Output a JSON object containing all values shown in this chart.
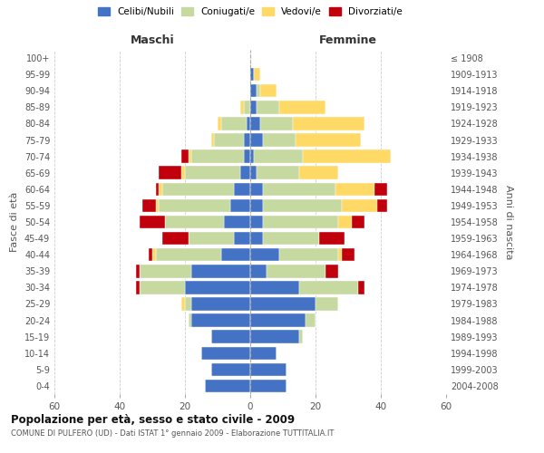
{
  "age_groups": [
    "0-4",
    "5-9",
    "10-14",
    "15-19",
    "20-24",
    "25-29",
    "30-34",
    "35-39",
    "40-44",
    "45-49",
    "50-54",
    "55-59",
    "60-64",
    "65-69",
    "70-74",
    "75-79",
    "80-84",
    "85-89",
    "90-94",
    "95-99",
    "100+"
  ],
  "birth_years": [
    "2004-2008",
    "1999-2003",
    "1994-1998",
    "1989-1993",
    "1984-1988",
    "1979-1983",
    "1974-1978",
    "1969-1973",
    "1964-1968",
    "1959-1963",
    "1954-1958",
    "1949-1953",
    "1944-1948",
    "1939-1943",
    "1934-1938",
    "1929-1933",
    "1924-1928",
    "1919-1923",
    "1914-1918",
    "1909-1913",
    "≤ 1908"
  ],
  "colors": {
    "single": "#4472C4",
    "married": "#C6D9A0",
    "widowed": "#FFD966",
    "divorced": "#C0000C"
  },
  "male": {
    "single": [
      14,
      12,
      15,
      12,
      18,
      18,
      20,
      18,
      9,
      5,
      8,
      6,
      5,
      3,
      2,
      2,
      1,
      0,
      0,
      0,
      0
    ],
    "married": [
      0,
      0,
      0,
      0,
      1,
      2,
      14,
      16,
      20,
      14,
      18,
      22,
      22,
      17,
      16,
      9,
      8,
      2,
      0,
      0,
      0
    ],
    "widowed": [
      0,
      0,
      0,
      0,
      0,
      1,
      0,
      0,
      1,
      0,
      0,
      1,
      1,
      1,
      1,
      1,
      1,
      1,
      0,
      0,
      0
    ],
    "divorced": [
      0,
      0,
      0,
      0,
      0,
      0,
      1,
      1,
      1,
      8,
      8,
      4,
      1,
      7,
      2,
      0,
      0,
      0,
      0,
      0,
      0
    ]
  },
  "female": {
    "single": [
      11,
      11,
      8,
      15,
      17,
      20,
      15,
      5,
      9,
      4,
      4,
      4,
      4,
      2,
      1,
      4,
      3,
      2,
      2,
      1,
      0
    ],
    "married": [
      0,
      0,
      0,
      1,
      3,
      7,
      18,
      18,
      18,
      17,
      23,
      24,
      22,
      13,
      15,
      10,
      10,
      7,
      1,
      0,
      0
    ],
    "widowed": [
      0,
      0,
      0,
      0,
      0,
      0,
      0,
      0,
      1,
      0,
      4,
      11,
      12,
      12,
      27,
      20,
      22,
      14,
      5,
      2,
      0
    ],
    "divorced": [
      0,
      0,
      0,
      0,
      0,
      0,
      2,
      4,
      4,
      8,
      4,
      3,
      4,
      0,
      0,
      0,
      0,
      0,
      0,
      0,
      0
    ]
  },
  "xlim": 60,
  "title": "Popolazione per età, sesso e stato civile - 2009",
  "subtitle": "COMUNE DI PULFERO (UD) - Dati ISTAT 1° gennaio 2009 - Elaborazione TUTTITALIA.IT",
  "xlabel_left": "Maschi",
  "xlabel_right": "Femmine",
  "ylabel_left": "Fasce di età",
  "ylabel_right": "Anni di nascita",
  "legend_labels": [
    "Celibi/Nubili",
    "Coniugati/e",
    "Vedovi/e",
    "Divorziati/e"
  ]
}
